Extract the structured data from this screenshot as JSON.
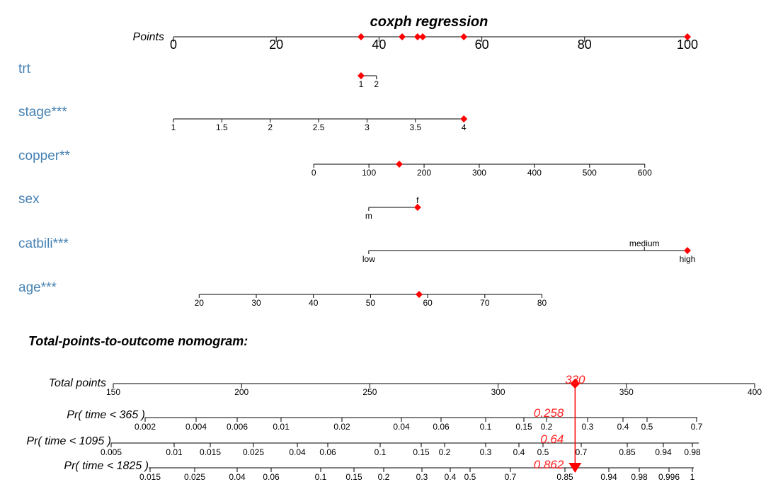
{
  "chart_data": {
    "type": "nomogram",
    "title": "coxph regression",
    "points_axis": {
      "label": "Points",
      "ticks": [
        "0",
        "20",
        "40",
        "60",
        "80",
        "100"
      ],
      "range": [
        0,
        100
      ],
      "marked_points": [
        36.5,
        44.5,
        47.5,
        48.5,
        56.5,
        100
      ]
    },
    "variables": [
      {
        "label": "trt",
        "range": [
          1,
          2
        ],
        "ticks": [
          {
            "label": "1",
            "value": 1
          },
          {
            "label": "2",
            "value": 2
          }
        ],
        "points_range": [
          36.5,
          39.5
        ],
        "selected": 1
      },
      {
        "label": "stage***",
        "range": [
          1,
          4
        ],
        "ticks": [
          {
            "label": "1",
            "value": 1
          },
          {
            "label": "1.5",
            "value": 1.5
          },
          {
            "label": "2",
            "value": 2
          },
          {
            "label": "2.5",
            "value": 2.5
          },
          {
            "label": "3",
            "value": 3
          },
          {
            "label": "3.5",
            "value": 3.5
          },
          {
            "label": "4",
            "value": 4
          }
        ],
        "points_range": [
          0,
          56.5
        ],
        "selected": 4
      },
      {
        "label": "copper**",
        "range": [
          0,
          600
        ],
        "ticks": [
          {
            "label": "0",
            "value": 0
          },
          {
            "label": "100",
            "value": 100
          },
          {
            "label": "200",
            "value": 200
          },
          {
            "label": "300",
            "value": 300
          },
          {
            "label": "400",
            "value": 400
          },
          {
            "label": "500",
            "value": 500
          },
          {
            "label": "600",
            "value": 600
          }
        ],
        "points_range": [
          27.3,
          91.7
        ],
        "selected": 155
      },
      {
        "label": "sex",
        "range": [
          0,
          1
        ],
        "ticks": [
          {
            "label": "m",
            "value": 0,
            "pos": "below"
          },
          {
            "label": "f",
            "value": 1,
            "pos": "above"
          }
        ],
        "points_range": [
          38,
          47.5
        ],
        "selected": 1
      },
      {
        "label": "catbili***",
        "range": [
          0,
          2
        ],
        "ticks": [
          {
            "label": "low",
            "value": 0,
            "pos": "below"
          },
          {
            "label": "medium",
            "value": 1.73,
            "pos": "above"
          },
          {
            "label": "high",
            "value": 2,
            "pos": "below"
          }
        ],
        "points_range": [
          38,
          100
        ],
        "selected": 2
      },
      {
        "label": "age***",
        "range": [
          20,
          80
        ],
        "ticks": [
          {
            "label": "20",
            "value": 20
          },
          {
            "label": "30",
            "value": 30
          },
          {
            "label": "40",
            "value": 40
          },
          {
            "label": "50",
            "value": 50
          },
          {
            "label": "60",
            "value": 60
          },
          {
            "label": "70",
            "value": 70
          },
          {
            "label": "80",
            "value": 80
          }
        ],
        "points_range": [
          5,
          71.7
        ],
        "selected": 58.5
      }
    ],
    "outcome_title": "Total-points-to-outcome nomogram:",
    "total_points_axis": {
      "label": "Total points",
      "ticks": [
        "150",
        "200",
        "250",
        "300",
        "350",
        "400"
      ],
      "range": [
        150,
        400
      ],
      "value": 330,
      "value_label": "330"
    },
    "probability_axes": [
      {
        "label": "Pr( time < 365 )",
        "ticks": [
          "0.002",
          "0.004",
          "0.006",
          "0.01",
          "0.02",
          "0.04",
          "0.06",
          "0.1",
          "0.15",
          "0.2",
          "0.3",
          "0.4",
          "0.5",
          "0.7"
        ],
        "value": 0.258,
        "value_label": "0.258"
      },
      {
        "label": "Pr( time < 1095 )",
        "ticks": [
          "0.005",
          "0.01",
          "0.015",
          "0.025",
          "0.04",
          "0.06",
          "0.1",
          "0.15",
          "0.2",
          "0.3",
          "0.4",
          "0.5",
          "0.7",
          "0.85",
          "0.94",
          "0.98"
        ],
        "value": 0.64,
        "value_label": "0.64"
      },
      {
        "label": "Pr( time < 1825 )",
        "ticks": [
          "0.015",
          "0.025",
          "0.04",
          "0.06",
          "0.1",
          "0.15",
          "0.2",
          "0.3",
          "0.4",
          "0.5",
          "0.7",
          "0.85",
          "0.94",
          "0.98",
          "0.996",
          "1"
        ],
        "value": 0.862,
        "value_label": "0.862"
      }
    ],
    "colors": {
      "marker": "#ff0000",
      "label": "#4682b4",
      "axis": "#000000"
    },
    "grid": false
  }
}
